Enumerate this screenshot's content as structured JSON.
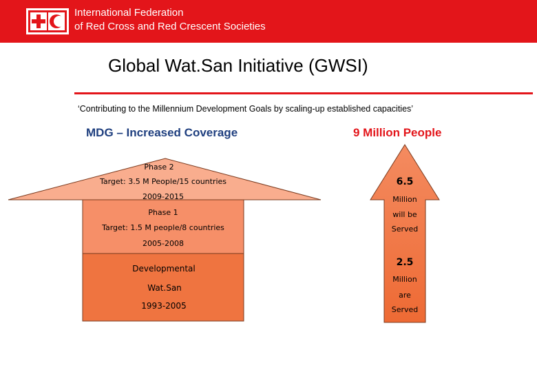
{
  "header": {
    "logo": "red-cross-red-crescent-logo",
    "org_line1": "International Federation",
    "org_line2": "of Red Cross and Red Crescent Societies"
  },
  "title": "Global Wat.San Initiative (GWSI)",
  "subtitle": "‘Contributing to the Millennium Development Goals by scaling-up established capacities’",
  "left_heading": "MDG – Increased Coverage",
  "right_heading": "9 Million People",
  "left_arrow": {
    "phase2": {
      "label": "Phase 2",
      "target": "Target: 3.5 M People/15 countries",
      "years": "2009-2015"
    },
    "phase1": {
      "label": "Phase  1",
      "target": "Target: 1.5 M people/8 countries",
      "years": "2005-2008"
    },
    "developmental": {
      "line1": "Developmental",
      "line2": "Wat.San",
      "years": "1993-2005"
    }
  },
  "right_arrow": {
    "upper": {
      "value": "6.5",
      "line1": "Million",
      "line2": "will be",
      "line3": "Served"
    },
    "lower": {
      "value": "2.5",
      "line1": "Million",
      "line2": "are",
      "line3": "Served"
    }
  },
  "colors": {
    "brand_red": "#e3151a",
    "heading_blue": "#1f3f7f",
    "arrow_light": "#f9a989",
    "arrow_mid": "#f57f55",
    "arrow_dark": "#ee6a34"
  }
}
